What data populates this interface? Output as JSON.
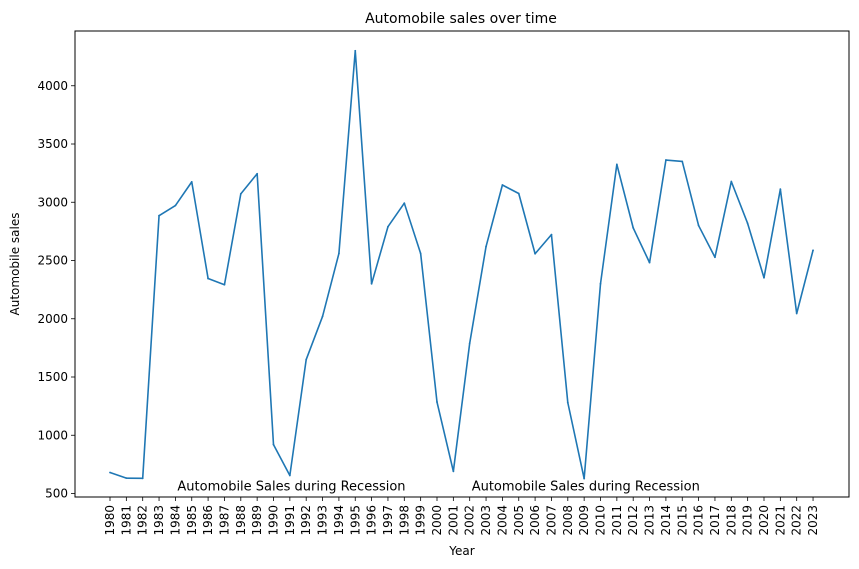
{
  "chart_data": {
    "type": "line",
    "title": "Automobile sales over time",
    "xlabel": "Year",
    "ylabel": "Automobile sales",
    "categories": [
      "1980",
      "1981",
      "1982",
      "1983",
      "1984",
      "1985",
      "1986",
      "1987",
      "1988",
      "1989",
      "1990",
      "1991",
      "1992",
      "1993",
      "1994",
      "1995",
      "1996",
      "1997",
      "1998",
      "1999",
      "2000",
      "2001",
      "2002",
      "2003",
      "2004",
      "2005",
      "2006",
      "2007",
      "2008",
      "2009",
      "2010",
      "2011",
      "2012",
      "2013",
      "2014",
      "2015",
      "2016",
      "2017",
      "2018",
      "2019",
      "2020",
      "2021",
      "2022",
      "2023"
    ],
    "series": [
      {
        "color": "#1f77b4",
        "values": [
          680,
          632,
          630,
          2885,
          2972,
          3175,
          2345,
          2292,
          3072,
          3245,
          920,
          655,
          1650,
          2020,
          2560,
          4300,
          2300,
          2790,
          2992,
          2560,
          1285,
          690,
          1790,
          2620,
          3148,
          3075,
          2558,
          2722,
          1280,
          628,
          2300,
          3325,
          2780,
          2482,
          3362,
          3350,
          2800,
          2528,
          3178,
          2818,
          2352,
          3112,
          2045,
          2588
        ]
      }
    ],
    "yticks": [
      500,
      1000,
      1500,
      2000,
      2500,
      3000,
      3500,
      4000
    ],
    "ylim": [
      470,
      4470
    ],
    "grid": false,
    "annotations": [
      {
        "text": "Automobile Sales during Recession",
        "x": "1984",
        "y": 560
      },
      {
        "text": "Automobile Sales during Recession",
        "x": "2002",
        "y": 560
      }
    ]
  }
}
